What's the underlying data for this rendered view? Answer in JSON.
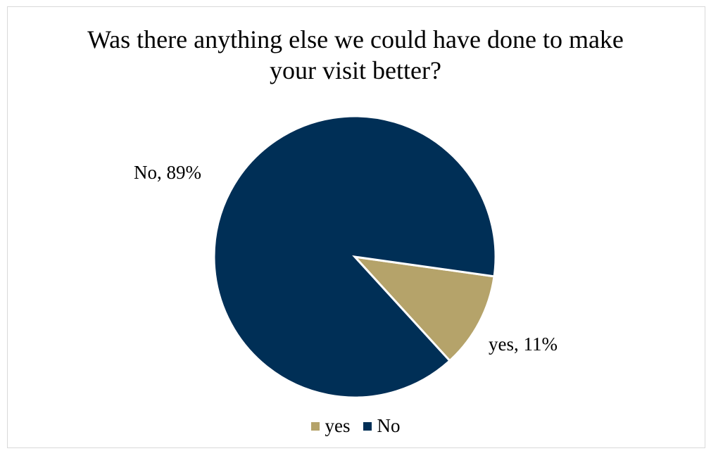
{
  "chart_data": {
    "type": "pie",
    "title_lines": [
      "Was there anything else we could have done to make",
      "your visit better?"
    ],
    "slices": [
      {
        "name": "yes",
        "value": 11,
        "label": "yes, 11%",
        "color": "#B5A36A"
      },
      {
        "name": "No",
        "value": 89,
        "label": "No, 89%",
        "color": "#002F56"
      }
    ],
    "legend": {
      "position": "bottom",
      "items": [
        "yes",
        "No"
      ]
    }
  }
}
